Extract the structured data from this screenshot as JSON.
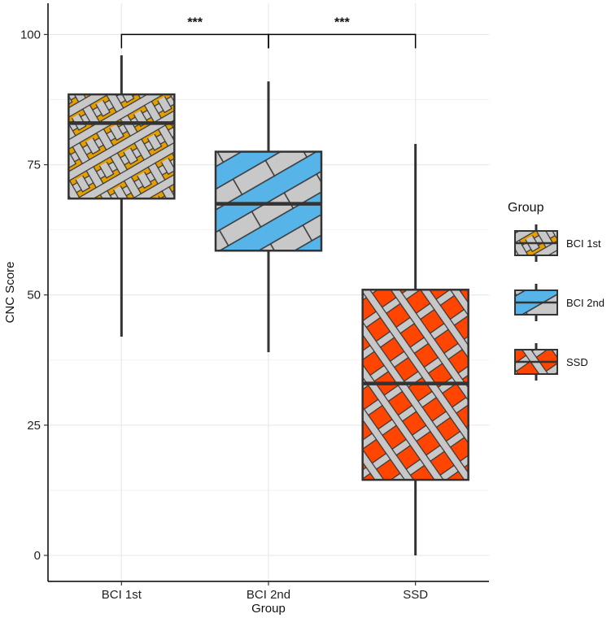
{
  "chart_data": {
    "type": "box",
    "xlabel": "Group",
    "ylabel": "CNC Score",
    "ylim": [
      -5,
      106
    ],
    "yticks": [
      "0",
      "25",
      "50",
      "75",
      "100"
    ],
    "categories": [
      "BCI 1st",
      "BCI 2nd",
      "SSD"
    ],
    "boxes": [
      {
        "name": "BCI 1st",
        "min": 42,
        "q1": 68.5,
        "median": 83,
        "q3": 88.5,
        "max": 96,
        "color": "#E69F00",
        "pattern": "weave"
      },
      {
        "name": "BCI 2nd",
        "min": 39,
        "q1": 58.5,
        "median": 67.5,
        "q3": 77.5,
        "max": 91,
        "color": "#56B4E9",
        "pattern": "stripe"
      },
      {
        "name": "SSD",
        "min": 0,
        "q1": 14.5,
        "median": 33,
        "q3": 51,
        "max": 79,
        "color": "#FF4500",
        "pattern": "crosshatch"
      }
    ],
    "significance": [
      {
        "from": "BCI 1st",
        "to": "BCI 2nd",
        "label": "***",
        "y": 100
      },
      {
        "from": "BCI 2nd",
        "to": "SSD",
        "label": "***",
        "y": 100
      }
    ],
    "legend": {
      "title": "Group",
      "position": "right",
      "items": [
        "BCI 1st",
        "BCI 2nd",
        "SSD"
      ]
    },
    "grid": true
  }
}
